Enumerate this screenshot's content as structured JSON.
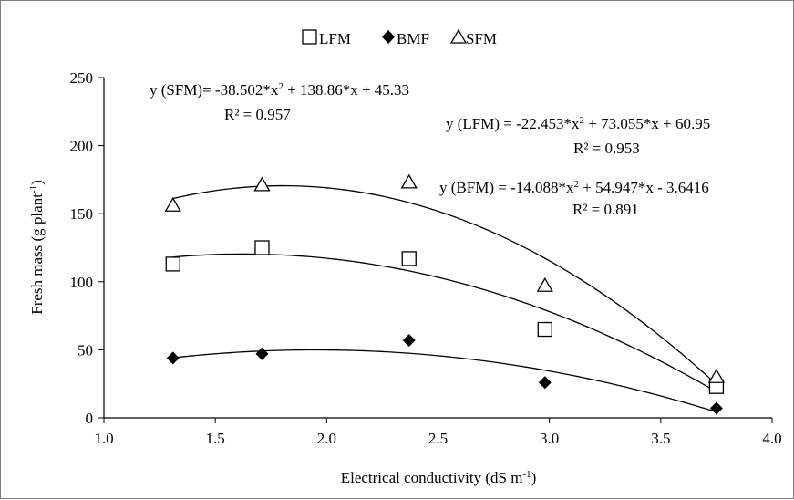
{
  "chart_data": {
    "type": "scatter",
    "title": "",
    "xlabel": "Electrical conductivity (dS m",
    "xlabel_sup": "-1",
    "xlabel_end": ")",
    "ylabel": "Fresh mass (g plant",
    "ylabel_sup": "-1",
    "ylabel_end": ")",
    "xlim": [
      1.0,
      4.0
    ],
    "ylim": [
      0,
      250
    ],
    "xticks": [
      "1.0",
      "1.5",
      "2.0",
      "2.5",
      "3.0",
      "3.5",
      "4.0"
    ],
    "yticks": [
      "0",
      "50",
      "100",
      "150",
      "200",
      "250"
    ],
    "grid": false,
    "legend_position": "top-center",
    "x": [
      1.31,
      1.71,
      2.37,
      2.98,
      3.75
    ],
    "series": [
      {
        "name": "LFM",
        "marker": "open-square",
        "values": [
          113,
          125,
          117,
          65,
          23
        ],
        "fit": {
          "a": -22.453,
          "b": 73.055,
          "c": 60.95,
          "x_range": [
            1.31,
            3.75
          ]
        }
      },
      {
        "name": "BMF",
        "marker": "filled-diamond",
        "values": [
          44,
          47,
          57,
          26,
          7
        ],
        "fit": {
          "a": -14.088,
          "b": 54.947,
          "c": -3.6416,
          "x_range": [
            1.31,
            3.75
          ]
        }
      },
      {
        "name": "SFM",
        "marker": "open-triangle",
        "values": [
          156,
          171,
          173,
          97,
          30
        ],
        "fit": {
          "a": -38.502,
          "b": 138.86,
          "c": 45.33,
          "x_range": [
            1.31,
            3.75
          ]
        }
      }
    ],
    "annotations": [
      {
        "eq_pre": "y (SFM)= -38.502*x",
        "eq_post": " + 138.86*x + 45.33",
        "r2": "R² = 0.957"
      },
      {
        "eq_pre": "y (LFM) = -22.453*x",
        "eq_post": " + 73.055*x + 60.95",
        "r2": "R² = 0.953"
      },
      {
        "eq_pre": "y (BFM) = -14.088*x",
        "eq_post": " + 54.947*x - 3.6416",
        "r2": "R² = 0.891"
      }
    ],
    "colors": {
      "marker": "#000000",
      "line": "#000000",
      "axis": "#000000"
    }
  }
}
